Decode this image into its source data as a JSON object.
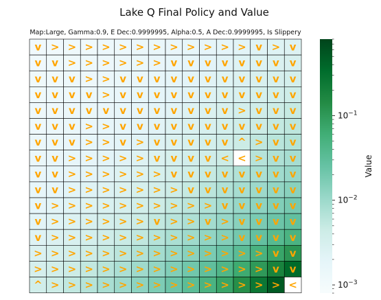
{
  "chart_data": {
    "type": "heatmap",
    "title": "Lake Q Final Policy and Value",
    "subtitle": "Map:Large, Gamma:0.9, E Dec:0.9999995, Alpha:0.5, A Dec:0.9999995, Is Slippery",
    "colorbar_label": "Value",
    "colorbar_scale": "log",
    "colorbar_range": [
      0.0008,
      0.8
    ],
    "colorbar_ticks": [
      {
        "value": 0.1,
        "label": "10^-1"
      },
      {
        "value": 0.01,
        "label": "10^-2"
      },
      {
        "value": 0.001,
        "label": "10^-3"
      }
    ],
    "colormap": [
      "#f7fcfd",
      "#e5f5f9",
      "#ccece6",
      "#99d8c9",
      "#66c2a4",
      "#41ae76",
      "#238b45",
      "#006d2c",
      "#00441b"
    ],
    "hole_color": "#ffffff",
    "grid_line_color": "#000000",
    "arrow_color": "#ffa500",
    "policy": [
      [
        "v",
        ">",
        ">",
        ">",
        ">",
        ">",
        ">",
        ">",
        ">",
        ">",
        ">",
        ">",
        ">",
        "v",
        ">",
        "v"
      ],
      [
        "v",
        "v",
        ">",
        ">",
        ">",
        ">",
        ">",
        ">",
        "v",
        "v",
        "v",
        "v",
        "v",
        "v",
        "v",
        "v"
      ],
      [
        "v",
        "v",
        "v",
        ">",
        ">",
        "v",
        "v",
        "v",
        "v",
        "v",
        "v",
        "v",
        "v",
        "v",
        "v",
        "v"
      ],
      [
        "v",
        "v",
        "v",
        "v",
        ">",
        "v",
        "v",
        "v",
        "v",
        "v",
        "v",
        "v",
        "v",
        "v",
        "v",
        "v"
      ],
      [
        "v",
        "v",
        "v",
        "v",
        "v",
        "v",
        "v",
        "v",
        "v",
        "v",
        "v",
        "v",
        ">",
        "v",
        "v",
        "v"
      ],
      [
        "v",
        "v",
        "v",
        ">",
        ">",
        "v",
        "v",
        "v",
        "v",
        "v",
        "v",
        "v",
        "v",
        "v",
        "v",
        "v"
      ],
      [
        "v",
        "v",
        "v",
        ">",
        ">",
        "v",
        ">",
        "v",
        "v",
        "v",
        "v",
        "v",
        "^",
        ">",
        "v",
        "v"
      ],
      [
        "v",
        "v",
        ">",
        ">",
        ">",
        ">",
        ">",
        "v",
        "v",
        "v",
        "v",
        "<",
        "<",
        ">",
        "v",
        "v"
      ],
      [
        "v",
        "v",
        ">",
        ">",
        ">",
        ">",
        ">",
        ">",
        "v",
        "v",
        "v",
        "v",
        "v",
        "v",
        "v",
        "v"
      ],
      [
        "v",
        "v",
        ">",
        ">",
        ">",
        ">",
        ">",
        ">",
        ">",
        "v",
        "v",
        "v",
        "v",
        "v",
        "v",
        "v"
      ],
      [
        "v",
        ">",
        ">",
        ">",
        ">",
        ">",
        ">",
        ">",
        ">",
        ">",
        ">",
        "v",
        "v",
        "v",
        "v",
        "v"
      ],
      [
        "v",
        ">",
        ">",
        ">",
        ">",
        ">",
        ">",
        "v",
        ">",
        ">",
        "v",
        ">",
        "v",
        "v",
        "v",
        "v"
      ],
      [
        "v",
        ">",
        ">",
        ">",
        ">",
        ">",
        ">",
        ">",
        ">",
        ">",
        ">",
        ">",
        "v",
        "v",
        "v",
        "v"
      ],
      [
        ">",
        ">",
        ">",
        ">",
        ">",
        ">",
        ">",
        ">",
        ">",
        ">",
        ">",
        ">",
        ">",
        ">",
        "v",
        "v"
      ],
      [
        ">",
        ">",
        ">",
        ">",
        ">",
        ">",
        ">",
        ">",
        ">",
        ">",
        ">",
        ">",
        ">",
        ">",
        "v",
        "v"
      ],
      [
        "^",
        ">",
        ">",
        ">",
        ">",
        ">",
        ">",
        ">",
        ">",
        ">",
        ">",
        ">",
        ">",
        ">",
        ">",
        "<"
      ]
    ],
    "values": [
      [
        0.0011,
        0.0011,
        0.0012,
        0.0012,
        0.0013,
        0.0013,
        0.0014,
        0.0015,
        0.0016,
        0.0017,
        0.0018,
        0.0019,
        0.0021,
        0.0023,
        0.0024,
        0.0025
      ],
      [
        0.0011,
        0.0012,
        0.0012,
        0.0013,
        0.0013,
        0.0014,
        0.0015,
        0.0016,
        0.0017,
        0.0018,
        0.002,
        0.0022,
        0.0024,
        0.0026,
        0.0028,
        0.003
      ],
      [
        0.0012,
        0.0012,
        0.0013,
        0.0013,
        0.0014,
        0.0015,
        0.0016,
        0.0017,
        0.0019,
        0.002,
        0.0022,
        0.0024,
        0.0027,
        0.003,
        0.0033,
        0.0035
      ],
      [
        0.0012,
        0.0013,
        0.0013,
        0.0014,
        0.0015,
        0.0016,
        0.0017,
        0.0019,
        0.002,
        0.0022,
        0.0025,
        0.0028,
        0.003,
        0.0034,
        0.0038,
        0.0042
      ],
      [
        0.0013,
        0.0013,
        0.0014,
        0.0015,
        0.0016,
        0.0017,
        0.0018,
        0.002,
        0.0022,
        0.0025,
        0.0028,
        0.0031,
        0.0035,
        0.004,
        0.0045,
        0.005
      ],
      [
        0.0013,
        0.0014,
        0.0015,
        0.0016,
        0.0017,
        0.0018,
        0.002,
        0.0022,
        0.0025,
        0.0028,
        0.0031,
        0.0035,
        0.004,
        0.0046,
        0.0052,
        0.0058
      ],
      [
        0.0014,
        0.0015,
        0.0016,
        0.0017,
        0.0018,
        0.002,
        0.0022,
        0.0025,
        0.0028,
        0.0031,
        0.0035,
        0.004,
        0.0045,
        0.0055,
        0.0062,
        0.007
      ],
      [
        0.0015,
        0.0016,
        0.0017,
        0.0018,
        0.002,
        0.0022,
        0.0025,
        0.0028,
        0.0032,
        0.0036,
        0.004,
        0.0045,
        null,
        0.0065,
        0.0075,
        0.0085
      ],
      [
        0.0016,
        0.0017,
        0.0018,
        0.002,
        0.0022,
        0.0025,
        0.0028,
        0.0032,
        0.0037,
        0.0042,
        0.005,
        0.006,
        0.007,
        0.008,
        0.0095,
        0.011
      ],
      [
        0.0017,
        0.0019,
        0.0021,
        0.0023,
        0.0025,
        0.0028,
        0.0032,
        0.0037,
        0.0043,
        0.005,
        0.006,
        0.0072,
        0.0085,
        0.01,
        0.012,
        0.014
      ],
      [
        0.0019,
        0.0021,
        0.0023,
        0.0026,
        0.0029,
        0.0033,
        0.0038,
        0.0044,
        0.0052,
        0.006,
        0.0072,
        0.0088,
        0.011,
        0.013,
        0.016,
        0.019
      ],
      [
        0.0021,
        0.0023,
        0.0026,
        0.003,
        0.0034,
        0.0039,
        0.0045,
        0.0053,
        0.0063,
        0.0075,
        0.009,
        0.011,
        0.014,
        0.018,
        0.023,
        0.028
      ],
      [
        0.0024,
        0.0027,
        0.003,
        0.0035,
        0.004,
        0.0047,
        0.0055,
        0.0066,
        0.008,
        0.0097,
        0.012,
        0.015,
        0.02,
        0.027,
        0.036,
        0.048
      ],
      [
        0.0028,
        0.0032,
        0.0037,
        0.0043,
        0.005,
        0.006,
        0.0072,
        0.0088,
        0.011,
        0.014,
        0.018,
        0.024,
        0.033,
        0.05,
        0.075,
        0.11
      ],
      [
        0.0033,
        0.0038,
        0.0045,
        0.0053,
        0.0064,
        0.0078,
        0.0097,
        0.012,
        0.016,
        0.021,
        0.029,
        0.042,
        0.065,
        0.1,
        0.18,
        0.35
      ],
      [
        0.0038,
        0.0045,
        0.0054,
        0.0066,
        0.0082,
        0.01,
        0.013,
        0.017,
        0.023,
        0.032,
        0.048,
        0.075,
        0.13,
        0.25,
        0.5,
        null
      ]
    ]
  }
}
